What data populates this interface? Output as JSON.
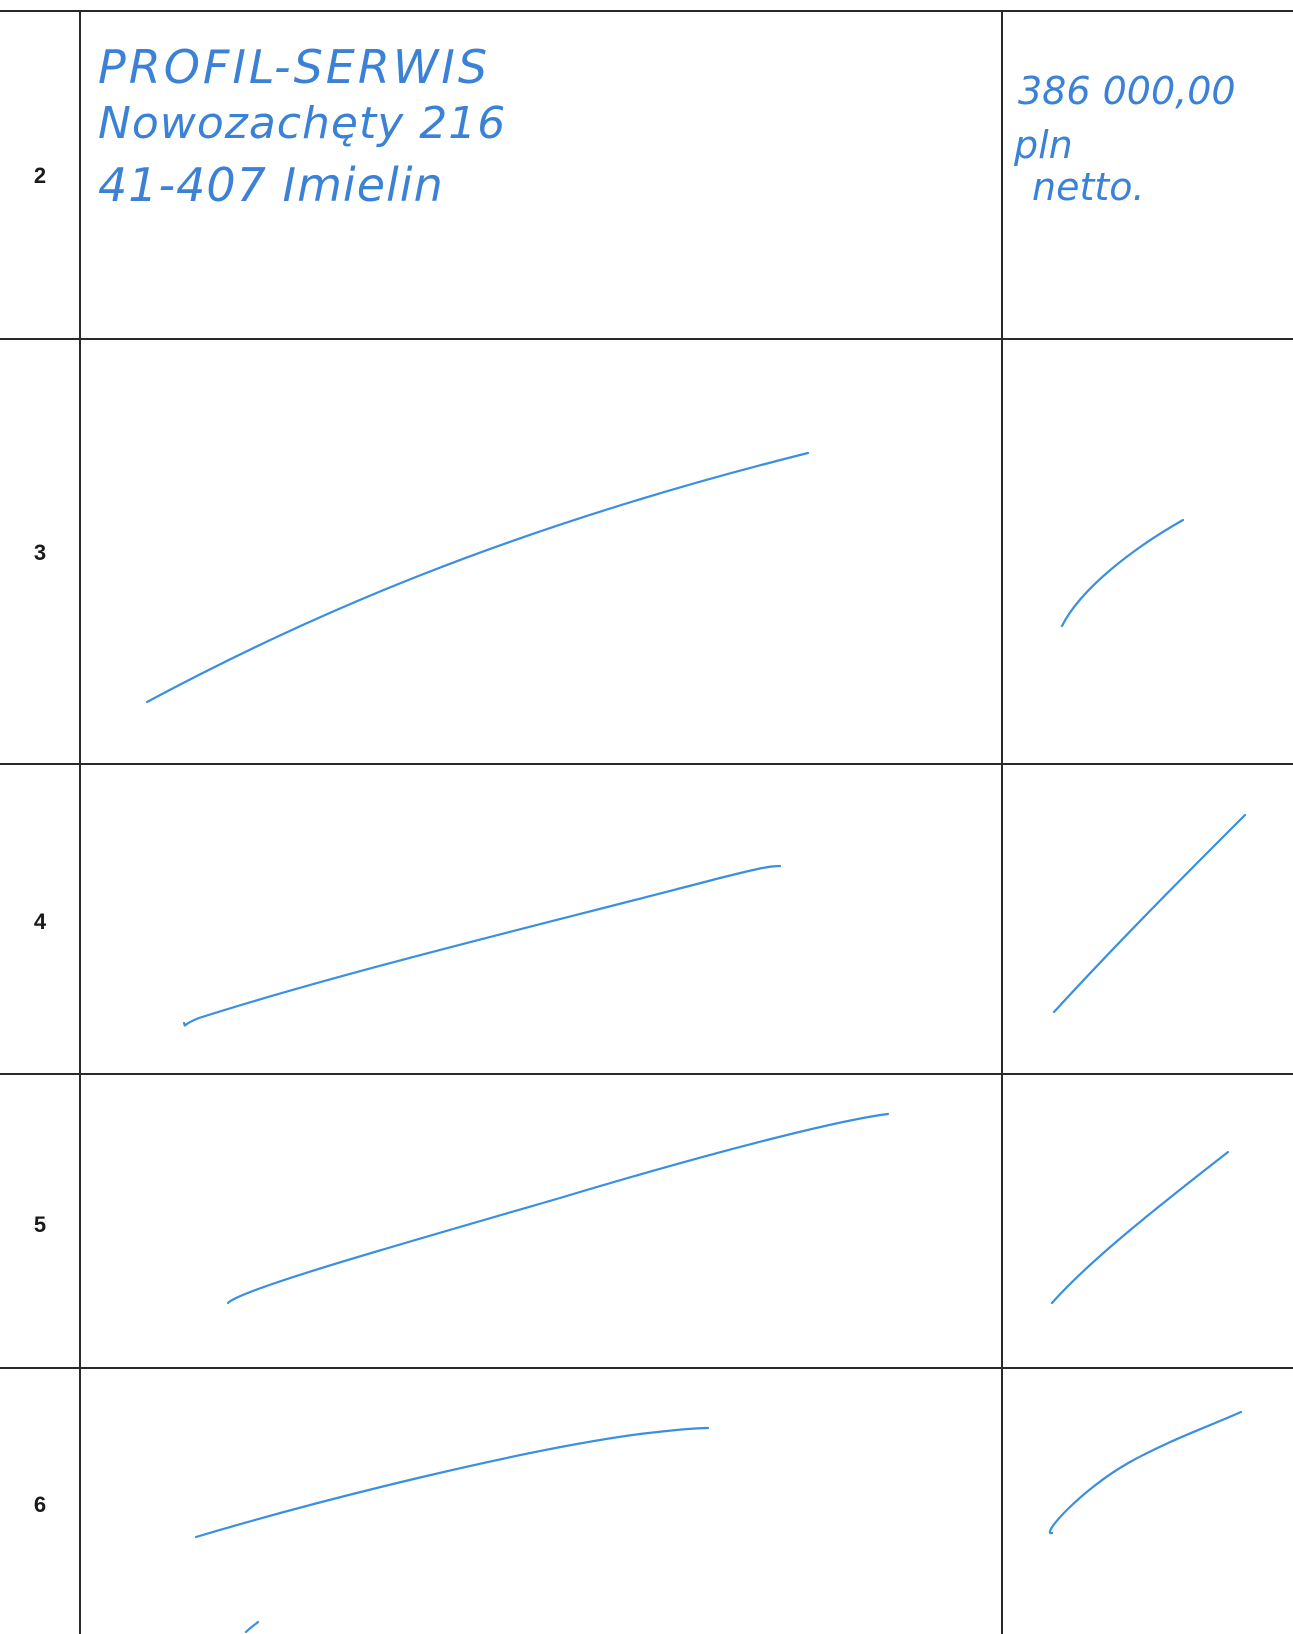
{
  "rows": [
    {
      "number": "2",
      "company": [
        "PROFIL-SERWIS",
        "Nowozachęty 216",
        "41-407 Imielin"
      ],
      "price": [
        "386 000,00",
        "pln",
        "netto."
      ]
    },
    {
      "number": "3"
    },
    {
      "number": "4"
    },
    {
      "number": "5"
    },
    {
      "number": "6"
    }
  ],
  "colors": {
    "ink": "#3b8fe0",
    "rules": "#2a2a2a"
  }
}
